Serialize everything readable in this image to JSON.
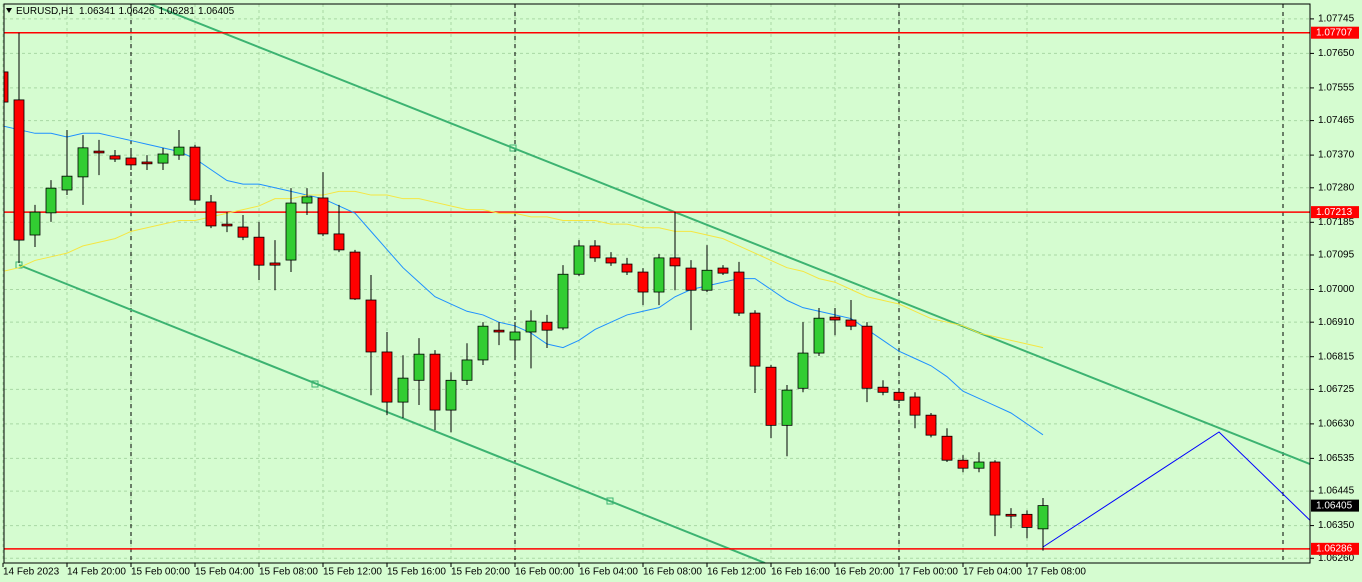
{
  "chart_data": {
    "type": "candlestick",
    "symbol": "EURUSD,H1",
    "categories": [
      "14 Feb 2023",
      null,
      null,
      null,
      "14 Feb 20:00",
      null,
      null,
      null,
      "15 Feb 00:00",
      null,
      null,
      null,
      "15 Feb 04:00",
      null,
      null,
      null,
      "15 Feb 08:00",
      null,
      null,
      null,
      "15 Feb 12:00",
      null,
      null,
      null,
      "15 Feb 16:00",
      null,
      null,
      null,
      "15 Feb 20:00",
      null,
      null,
      null,
      "16 Feb 00:00",
      null,
      null,
      null,
      "16 Feb 04:00",
      null,
      null,
      null,
      "16 Feb 08:00",
      null,
      null,
      null,
      "16 Feb 12:00",
      null,
      null,
      null,
      "16 Feb 16:00",
      null,
      null,
      null,
      "16 Feb 20:00",
      null,
      null,
      null,
      "17 Feb 00:00",
      null,
      null,
      null,
      "17 Feb 04:00",
      null,
      null,
      null,
      "17 Feb 08:00",
      null
    ],
    "open": [
      1.07599,
      1.07522,
      1.0715,
      1.07211,
      1.07274,
      1.0731,
      1.07381,
      1.07368,
      1.07362,
      1.07351,
      1.07348,
      1.0737,
      1.07392,
      1.07241,
      1.0718,
      1.07172,
      1.07144,
      1.07073,
      1.07081,
      1.07238,
      1.07252,
      1.07153,
      1.07103,
      1.06971,
      1.06828,
      1.0669,
      1.0675,
      1.06822,
      1.06668,
      1.0675,
      1.06806,
      1.06888,
      1.06861,
      1.06883,
      1.0691,
      1.06894,
      1.07042,
      1.0712,
      1.07087,
      1.0707,
      1.07048,
      1.06993,
      1.07087,
      1.07059,
      1.06998,
      1.07059,
      1.07048,
      1.06935,
      1.06786,
      1.06626,
      1.06728,
      1.06825,
      1.06924,
      1.06916,
      1.06899,
      1.06731,
      1.06717,
      1.06704,
      1.06654,
      1.06596,
      1.0653,
      1.06508,
      1.06525,
      1.06381,
      1.06381,
      1.06341
    ],
    "high": [
      1.07673,
      1.07707,
      1.07233,
      1.07301,
      1.07439,
      1.07425,
      1.07412,
      1.07384,
      1.07384,
      1.0737,
      1.0739,
      1.07439,
      1.07398,
      1.0726,
      1.07213,
      1.07205,
      1.07186,
      1.07136,
      1.07279,
      1.07279,
      1.07323,
      1.07233,
      1.07109,
      1.0704,
      1.06883,
      1.06819,
      1.06866,
      1.06833,
      1.06772,
      1.06852,
      1.0691,
      1.0691,
      1.0691,
      1.06943,
      1.0693,
      1.07067,
      1.07136,
      1.07136,
      1.07103,
      1.07087,
      1.07059,
      1.07098,
      1.07213,
      1.07081,
      1.07122,
      1.07067,
      1.07076,
      1.06943,
      1.06792,
      1.06737,
      1.0691,
      1.06949,
      1.06949,
      1.06971,
      1.0691,
      1.0675,
      1.06728,
      1.06717,
      1.0666,
      1.06618,
      1.06544,
      1.06552,
      1.0653,
      1.06398,
      1.06392,
      1.06426
    ],
    "low": [
      1.07067,
      1.07073,
      1.07117,
      1.07186,
      1.0726,
      1.07233,
      1.07315,
      1.07351,
      1.07329,
      1.07329,
      1.07329,
      1.07357,
      1.07233,
      1.07169,
      1.07158,
      1.07136,
      1.07026,
      1.06998,
      1.07048,
      1.07205,
      1.07147,
      1.07103,
      1.06971,
      1.06709,
      1.06654,
      1.06646,
      1.06682,
      1.06613,
      1.06607,
      1.06737,
      1.06792,
      1.06847,
      1.06806,
      1.06783,
      1.06839,
      1.06888,
      1.07037,
      1.07076,
      1.07065,
      1.0704,
      1.06957,
      1.06957,
      1.06998,
      1.06888,
      1.06993,
      1.0704,
      1.06927,
      1.06715,
      1.06591,
      1.06541,
      1.06717,
      1.06817,
      1.06874,
      1.06888,
      1.0669,
      1.06709,
      1.06687,
      1.06618,
      1.06593,
      1.06525,
      1.06497,
      1.06497,
      1.06321,
      1.06343,
      1.06315,
      1.06281
    ],
    "close": [
      1.07516,
      1.07136,
      1.07213,
      1.07279,
      1.07312,
      1.0739,
      1.07376,
      1.07359,
      1.07343,
      1.07346,
      1.07373,
      1.07392,
      1.07246,
      1.07175,
      1.07175,
      1.07144,
      1.07067,
      1.07067,
      1.07238,
      1.07255,
      1.07153,
      1.07109,
      1.06974,
      1.06828,
      1.0669,
      1.06756,
      1.06822,
      1.06668,
      1.0675,
      1.06806,
      1.06899,
      1.06883,
      1.06883,
      1.06913,
      1.06888,
      1.07042,
      1.0712,
      1.07087,
      1.07073,
      1.07048,
      1.06993,
      1.07087,
      1.07065,
      1.06998,
      1.07053,
      1.07045,
      1.06935,
      1.06789,
      1.06626,
      1.06723,
      1.06825,
      1.06921,
      1.06916,
      1.06899,
      1.06728,
      1.06717,
      1.06695,
      1.06654,
      1.06599,
      1.0653,
      1.06508,
      1.06525,
      1.06379,
      1.06376,
      1.06345,
      1.06405
    ],
    "up_color": "#32cd32",
    "down_color": "#ff0000",
    "series": [
      {
        "color": "#1e90ff",
        "values": [
          1.0745,
          1.0744,
          1.0743,
          1.0743,
          1.0742,
          1.0743,
          1.0743,
          1.0742,
          1.0741,
          1.074,
          1.0739,
          1.0738,
          1.0736,
          1.0733,
          1.073,
          1.0729,
          1.0729,
          1.0728,
          1.0727,
          1.0726,
          1.0725,
          1.0723,
          1.0721,
          1.0716,
          1.0711,
          1.0706,
          1.0702,
          1.0698,
          1.0696,
          1.0694,
          1.0693,
          1.0691,
          1.069,
          1.0688,
          1.0685,
          1.0684,
          1.0686,
          1.0689,
          1.0691,
          1.0693,
          1.0694,
          1.0695,
          1.0698,
          1.07,
          1.0701,
          1.0702,
          1.0703,
          1.0703,
          1.07,
          1.0697,
          1.0695,
          1.0694,
          1.0693,
          1.0692,
          1.0689,
          1.0686,
          1.0683,
          1.0681,
          1.0679,
          1.0676,
          1.0672,
          1.067,
          1.0668,
          1.0666,
          1.0663,
          1.066
        ]
      },
      {
        "color": "#f5e642",
        "values": [
          1.0705,
          1.0706,
          1.0708,
          1.0709,
          1.071,
          1.0712,
          1.0713,
          1.0714,
          1.0716,
          1.0717,
          1.0718,
          1.0719,
          1.0719,
          1.072,
          1.0721,
          1.0722,
          1.0723,
          1.0725,
          1.0725,
          1.0726,
          1.0726,
          1.0727,
          1.0727,
          1.0726,
          1.0726,
          1.0725,
          1.0725,
          1.0724,
          1.0723,
          1.0722,
          1.0722,
          1.0721,
          1.0721,
          1.072,
          1.072,
          1.0719,
          1.0719,
          1.0719,
          1.0718,
          1.0718,
          1.0717,
          1.0717,
          1.0716,
          1.0716,
          1.0715,
          1.0714,
          1.0712,
          1.071,
          1.0708,
          1.0706,
          1.0705,
          1.0703,
          1.0702,
          1.07,
          1.0698,
          1.0697,
          1.0696,
          1.0694,
          1.0692,
          1.0691,
          1.069,
          1.0688,
          1.0687,
          1.0686,
          1.0685,
          1.0684
        ]
      }
    ],
    "levels": [
      1.07707,
      1.07213,
      1.06286
    ],
    "level_color": "#ff0000",
    "ylim": [
      1.06247,
      1.07786
    ],
    "yticks": [
      1.07745,
      {
        "value": 1.0765,
        "label": "1.07650"
      },
      1.07555,
      1.07465,
      {
        "value": 1.0737,
        "label": "1.07370"
      },
      {
        "value": 1.0728,
        "label": "1.07280"
      },
      1.07185,
      1.07095,
      {
        "value": 1.07,
        "label": "1.07000"
      },
      {
        "value": 1.0691,
        "label": "1.06910"
      },
      1.06815,
      1.06725,
      {
        "value": 1.0663,
        "label": "1.06630"
      },
      1.06535,
      1.06445,
      {
        "value": 1.0635,
        "label": "1.06350"
      },
      {
        "value": 1.0626,
        "label": "1.06260"
      }
    ],
    "grid": true
  }
}
